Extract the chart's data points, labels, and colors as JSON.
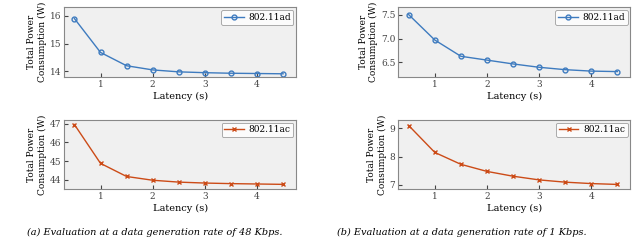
{
  "left_top": {
    "x": [
      0.5,
      1.0,
      1.5,
      2.0,
      2.5,
      3.0,
      3.5,
      4.0,
      4.5
    ],
    "y": [
      15.9,
      14.68,
      14.2,
      14.05,
      13.98,
      13.95,
      13.93,
      13.92,
      13.91
    ],
    "color": "#3e7bbf",
    "marker": "o",
    "label": "802.11ad",
    "ylabel": "Total Power\nConsumption (W)",
    "xlabel": "Latency (s)",
    "ylim": [
      13.8,
      16.3
    ],
    "yticks": [
      14.0,
      15.0,
      16.0
    ]
  },
  "left_bot": {
    "x": [
      0.5,
      1.0,
      1.5,
      2.0,
      2.5,
      3.0,
      3.5,
      4.0,
      4.5
    ],
    "y": [
      46.95,
      44.88,
      44.18,
      43.98,
      43.88,
      43.83,
      43.8,
      43.78,
      43.76
    ],
    "color": "#cc4b17",
    "marker": "x",
    "label": "802.11ac",
    "ylabel": "Total Power\nConsumption (W)",
    "xlabel": "Latency (s)",
    "ylim": [
      43.5,
      47.2
    ],
    "yticks": [
      44.0,
      45.0,
      46.0,
      47.0
    ]
  },
  "right_top": {
    "x": [
      0.5,
      1.0,
      1.5,
      2.0,
      2.5,
      3.0,
      3.5,
      4.0,
      4.5
    ],
    "y": [
      7.5,
      6.97,
      6.63,
      6.55,
      6.47,
      6.4,
      6.35,
      6.32,
      6.31
    ],
    "color": "#3e7bbf",
    "marker": "o",
    "label": "802.11ad",
    "ylabel": "Total Power\nConsumption (W)",
    "xlabel": "Latency (s)",
    "ylim": [
      6.2,
      7.65
    ],
    "yticks": [
      6.5,
      7.0,
      7.5
    ]
  },
  "right_bot": {
    "x": [
      0.5,
      1.0,
      1.5,
      2.0,
      2.5,
      3.0,
      3.5,
      4.0,
      4.5
    ],
    "y": [
      9.1,
      8.15,
      7.73,
      7.48,
      7.31,
      7.18,
      7.1,
      7.05,
      7.02
    ],
    "color": "#cc4b17",
    "marker": "x",
    "label": "802.11ac",
    "ylabel": "Total Power\nConsumption (W)",
    "xlabel": "Latency (s)",
    "ylim": [
      6.85,
      9.3
    ],
    "yticks": [
      7.0,
      8.0,
      9.0
    ]
  },
  "caption_left": "(a) Evaluation at a data generation rate of 48 Kbps.",
  "caption_right": "(b) Evaluation at a data generation rate of 1 Kbps.",
  "caption_fontsize": 7.0,
  "bg_color": "#f0f0f0",
  "linewidth": 1.0,
  "markersize": 3.5
}
